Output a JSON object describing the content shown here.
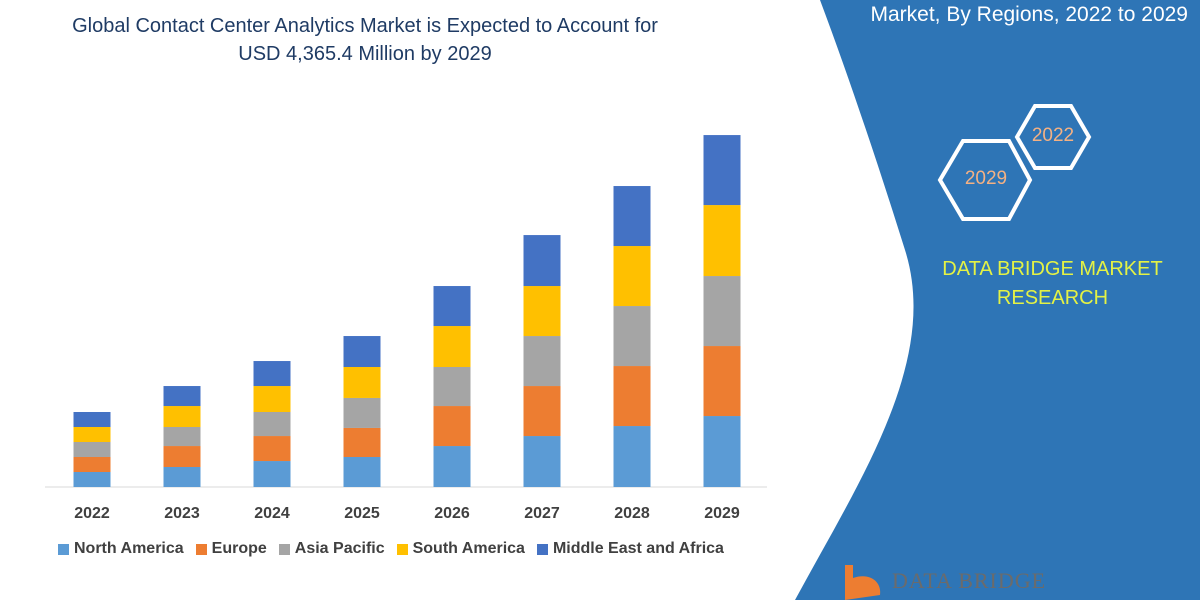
{
  "title_lines": [
    "Global Contact Center Analytics Market is Expected to Account for",
    "USD 4,365.4 Million by 2029"
  ],
  "panel": {
    "title": "Market, By Regions, 2022 to 2029",
    "hex_years": [
      "2022",
      "2029"
    ],
    "brand_lines": [
      "DATA BRIDGE MARKET",
      "RESEARCH"
    ],
    "logo_text": "DATA BRIDGE",
    "color": "#2e75b6"
  },
  "chart_data": {
    "type": "bar",
    "stacked": true,
    "title": "",
    "xlabel": "",
    "ylabel": "",
    "grid": false,
    "legend_position": "bottom",
    "categories": [
      "2022",
      "2023",
      "2024",
      "2025",
      "2026",
      "2027",
      "2028",
      "2029"
    ],
    "series": [
      {
        "name": "North America",
        "color": "#5b9bd5",
        "values": [
          186,
          248,
          322,
          372,
          508,
          632,
          756,
          880
        ]
      },
      {
        "name": "Europe",
        "color": "#ed7d31",
        "values": [
          186,
          260,
          310,
          360,
          496,
          620,
          744,
          868
        ]
      },
      {
        "name": "Asia Pacific",
        "color": "#a5a5a5",
        "values": [
          186,
          236,
          298,
          372,
          484,
          620,
          744,
          868
        ]
      },
      {
        "name": "South America",
        "color": "#ffc000",
        "values": [
          186,
          260,
          322,
          384,
          508,
          620,
          744,
          880
        ]
      },
      {
        "name": "Middle East and Africa",
        "color": "#4472c4",
        "values": [
          186,
          248,
          310,
          384,
          496,
          632,
          744,
          868
        ]
      }
    ]
  }
}
